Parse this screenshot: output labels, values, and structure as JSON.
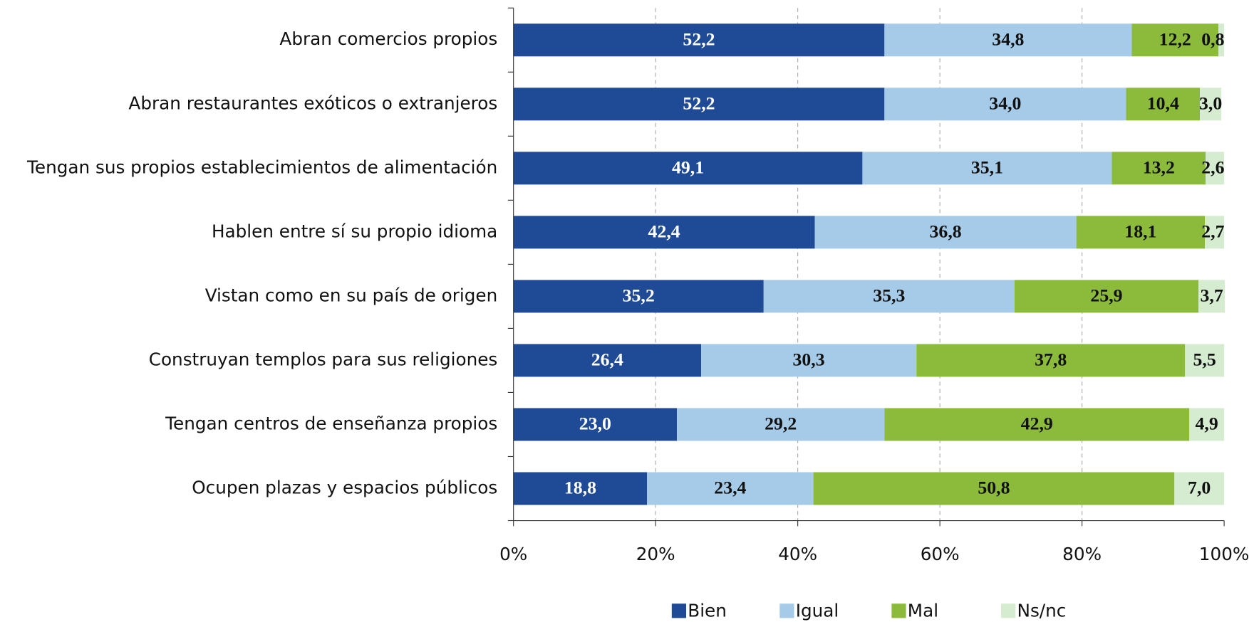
{
  "chart_data": {
    "type": "stacked-bar-horizontal",
    "categories": [
      "Abran comercios propios",
      "Abran restaurantes exóticos o extranjeros",
      "Tengan sus propios establecimientos de alimentación",
      "Hablen entre sí su propio idioma",
      "Vistan como en su país de origen",
      "Construyan templos para sus religiones",
      "Tengan centros de enseñanza propios",
      "Ocupen plazas y espacios públicos"
    ],
    "series": [
      {
        "name": "Bien",
        "color": "#1f4a96",
        "values": [
          52.2,
          52.2,
          49.1,
          42.4,
          35.2,
          26.4,
          23.0,
          18.8
        ],
        "value_labels": [
          "52,2",
          "52,2",
          "49,1",
          "42,4",
          "35,2",
          "26,4",
          "23,0",
          "18,8"
        ]
      },
      {
        "name": "Igual",
        "color": "#a6cbe8",
        "values": [
          34.8,
          34.0,
          35.1,
          36.8,
          35.3,
          30.3,
          29.2,
          23.4
        ],
        "value_labels": [
          "34,8",
          "34,0",
          "35,1",
          "36,8",
          "35,3",
          "30,3",
          "29,2",
          "23,4"
        ]
      },
      {
        "name": "Mal",
        "color": "#8cbb3c",
        "values": [
          12.2,
          10.4,
          13.2,
          18.1,
          25.9,
          37.8,
          42.9,
          50.8
        ],
        "value_labels": [
          "12,2",
          "10,4",
          "13,2",
          "18,1",
          "25,9",
          "37,8",
          "42,9",
          "50,8"
        ]
      },
      {
        "name": "Ns/nc",
        "color": "#d6ecd0",
        "values": [
          0.8,
          3.0,
          2.6,
          2.7,
          3.7,
          5.5,
          4.9,
          7.0
        ],
        "value_labels": [
          "0,8",
          "3,0",
          "2,6",
          "2,7",
          "3,7",
          "5,5",
          "4,9",
          "7,0"
        ]
      }
    ],
    "xlim": [
      0,
      100
    ],
    "xticks": [
      {
        "value": 0,
        "label": "0%"
      },
      {
        "value": 20,
        "label": "20%"
      },
      {
        "value": 40,
        "label": "40%"
      },
      {
        "value": 60,
        "label": "60%"
      },
      {
        "value": 80,
        "label": "80%"
      },
      {
        "value": 100,
        "label": "100%"
      }
    ],
    "grid": true,
    "legend": "bottom"
  }
}
